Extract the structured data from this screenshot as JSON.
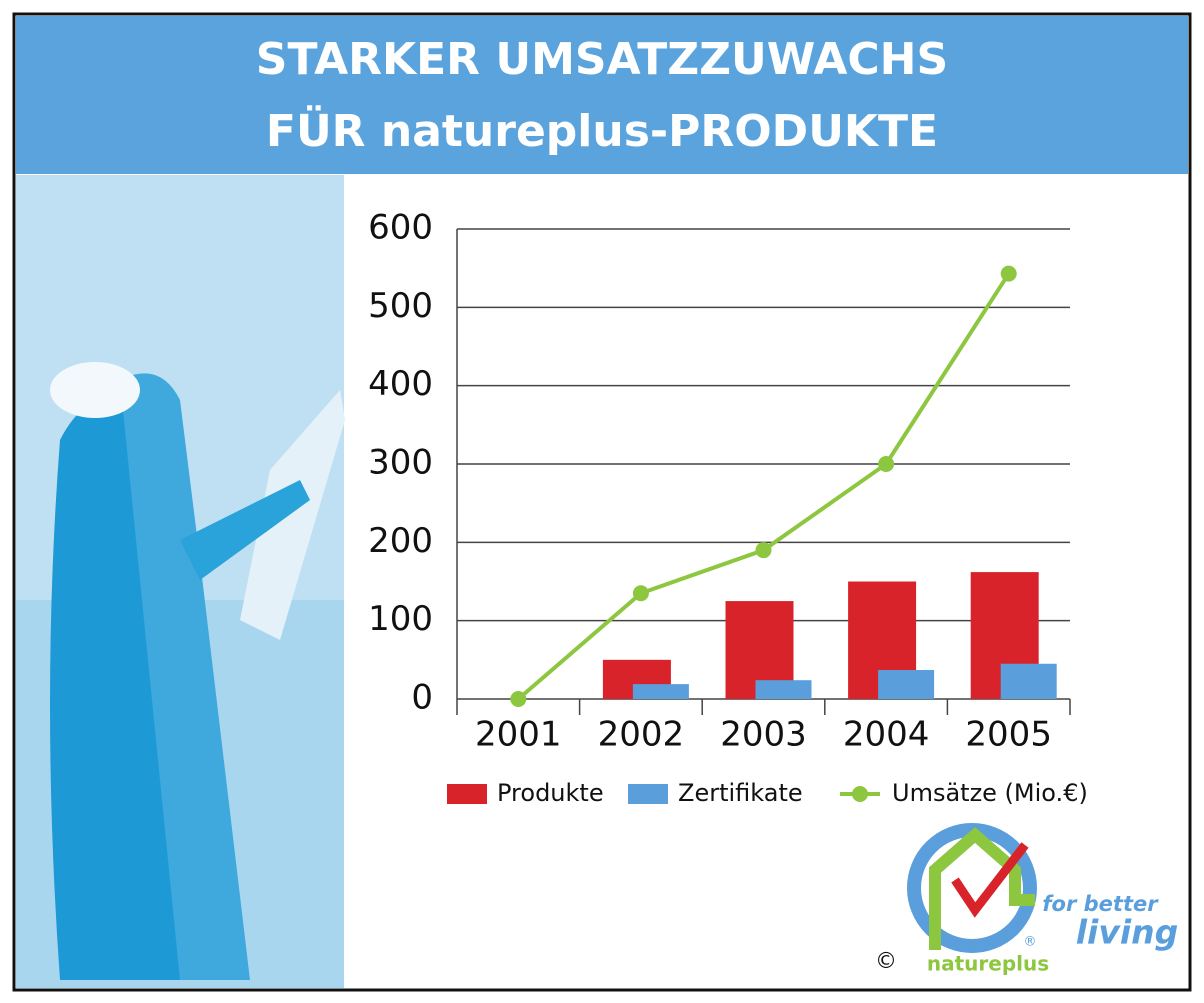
{
  "chart_data": {
    "type": "bar_line",
    "title": [
      "STARKER UMSATZZUWACHS",
      "FÜR natureplus-PRODUKTE"
    ],
    "categories": [
      "2001",
      "2002",
      "2003",
      "2004",
      "2005"
    ],
    "series": [
      {
        "name": "Produkte",
        "color": "#d9232a",
        "kind": "bar",
        "values": [
          0,
          50,
          125,
          150,
          162
        ]
      },
      {
        "name": "Zertifikate",
        "color": "#5a9fdc",
        "kind": "bar",
        "values": [
          0,
          19,
          24,
          37,
          45
        ]
      },
      {
        "name": "Umsätze (Mio.€)",
        "color": "#8dc63f",
        "kind": "line",
        "values": [
          0,
          135,
          190,
          300,
          543
        ]
      }
    ],
    "ylim": [
      0,
      600
    ],
    "yticks": [
      0,
      100,
      200,
      300,
      400,
      500,
      600
    ],
    "grid": true,
    "legend": "bottom"
  },
  "logo": {
    "tagline_1": "for better",
    "tagline_2": "living",
    "brand": "natureplus",
    "copyright": "©",
    "registered": "®"
  }
}
